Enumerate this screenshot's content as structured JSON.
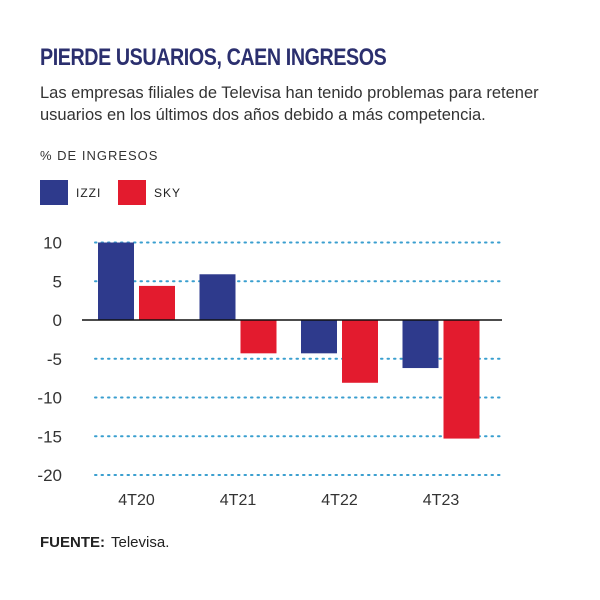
{
  "title": "PIERDE USUARIOS, CAEN INGRESOS",
  "subtitle": "Las empresas filiales de Televisa han tenido problemas para retener usuarios en los últimos dos años debido a más competencia.",
  "source_label": "FUENTE:",
  "source_value": "Televisa.",
  "chart_data": {
    "type": "bar",
    "ylabel": "% DE INGRESOS",
    "categories": [
      "4T20",
      "4T21",
      "4T22",
      "4T23"
    ],
    "series": [
      {
        "name": "IZZI",
        "color": "#2e3a8c",
        "values": [
          10.0,
          5.9,
          -4.3,
          -6.2
        ]
      },
      {
        "name": "SKY",
        "color": "#e31b2e",
        "values": [
          4.4,
          -4.3,
          -8.1,
          -15.3
        ]
      }
    ],
    "yticks": [
      10,
      5,
      0,
      -5,
      -10,
      -15,
      -20
    ],
    "ylim": [
      -20,
      10
    ],
    "grid": true,
    "grid_color": "#3a9fcf",
    "legend_position": "top-left"
  }
}
